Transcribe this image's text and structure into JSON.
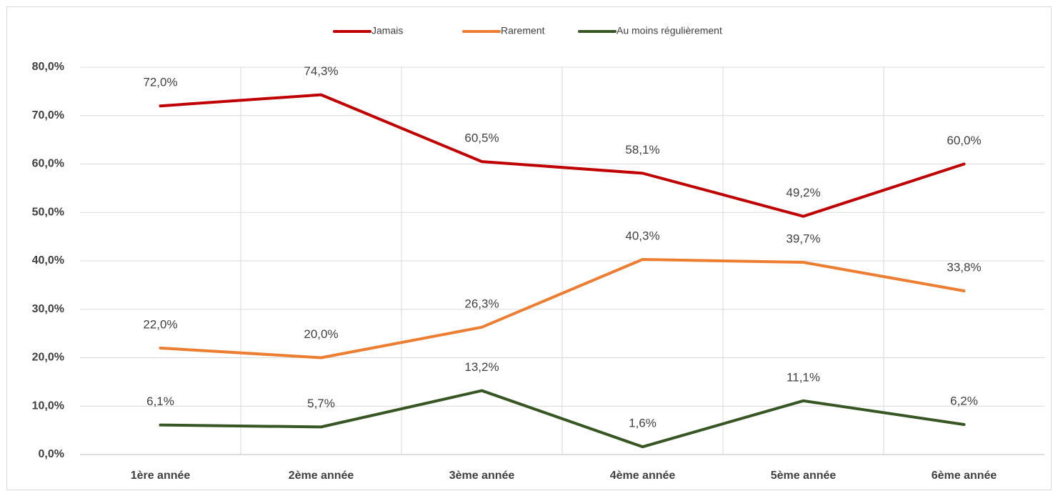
{
  "chart_data": {
    "type": "line",
    "categories": [
      "1ère année",
      "2ème année",
      "3ème année",
      "4ème année",
      "5ème année",
      "6ème année"
    ],
    "series": [
      {
        "name": "Jamais",
        "color": "#c00000",
        "values": [
          72.0,
          74.3,
          60.5,
          58.1,
          49.2,
          60.0
        ],
        "value_labels": [
          "72,0%",
          "74,3%",
          "60,5%",
          "58,1%",
          "49,2%",
          "60,0%"
        ]
      },
      {
        "name": "Rarement",
        "color": "#ed7d31",
        "values": [
          22.0,
          20.0,
          26.3,
          40.3,
          39.7,
          33.8
        ],
        "value_labels": [
          "22,0%",
          "20,0%",
          "26,3%",
          "40,3%",
          "39,7%",
          "33,8%"
        ]
      },
      {
        "name": "Au moins régulièrement",
        "color": "#375623",
        "values": [
          6.1,
          5.7,
          13.2,
          1.6,
          11.1,
          6.2
        ],
        "value_labels": [
          "6,1%",
          "5,7%",
          "13,2%",
          "1,6%",
          "11,1%",
          "6,2%"
        ]
      }
    ],
    "ylim": [
      0,
      80
    ],
    "yticks": [
      {
        "value": 0,
        "label": "0,0%"
      },
      {
        "value": 10,
        "label": "10,0%"
      },
      {
        "value": 20,
        "label": "20,0%"
      },
      {
        "value": 30,
        "label": "30,0%"
      },
      {
        "value": 40,
        "label": "40,0%"
      },
      {
        "value": 50,
        "label": "50,0%"
      },
      {
        "value": 60,
        "label": "60,0%"
      },
      {
        "value": 70,
        "label": "70,0%"
      },
      {
        "value": 80,
        "label": "80,0%"
      }
    ],
    "grid": true,
    "legend": "top"
  }
}
